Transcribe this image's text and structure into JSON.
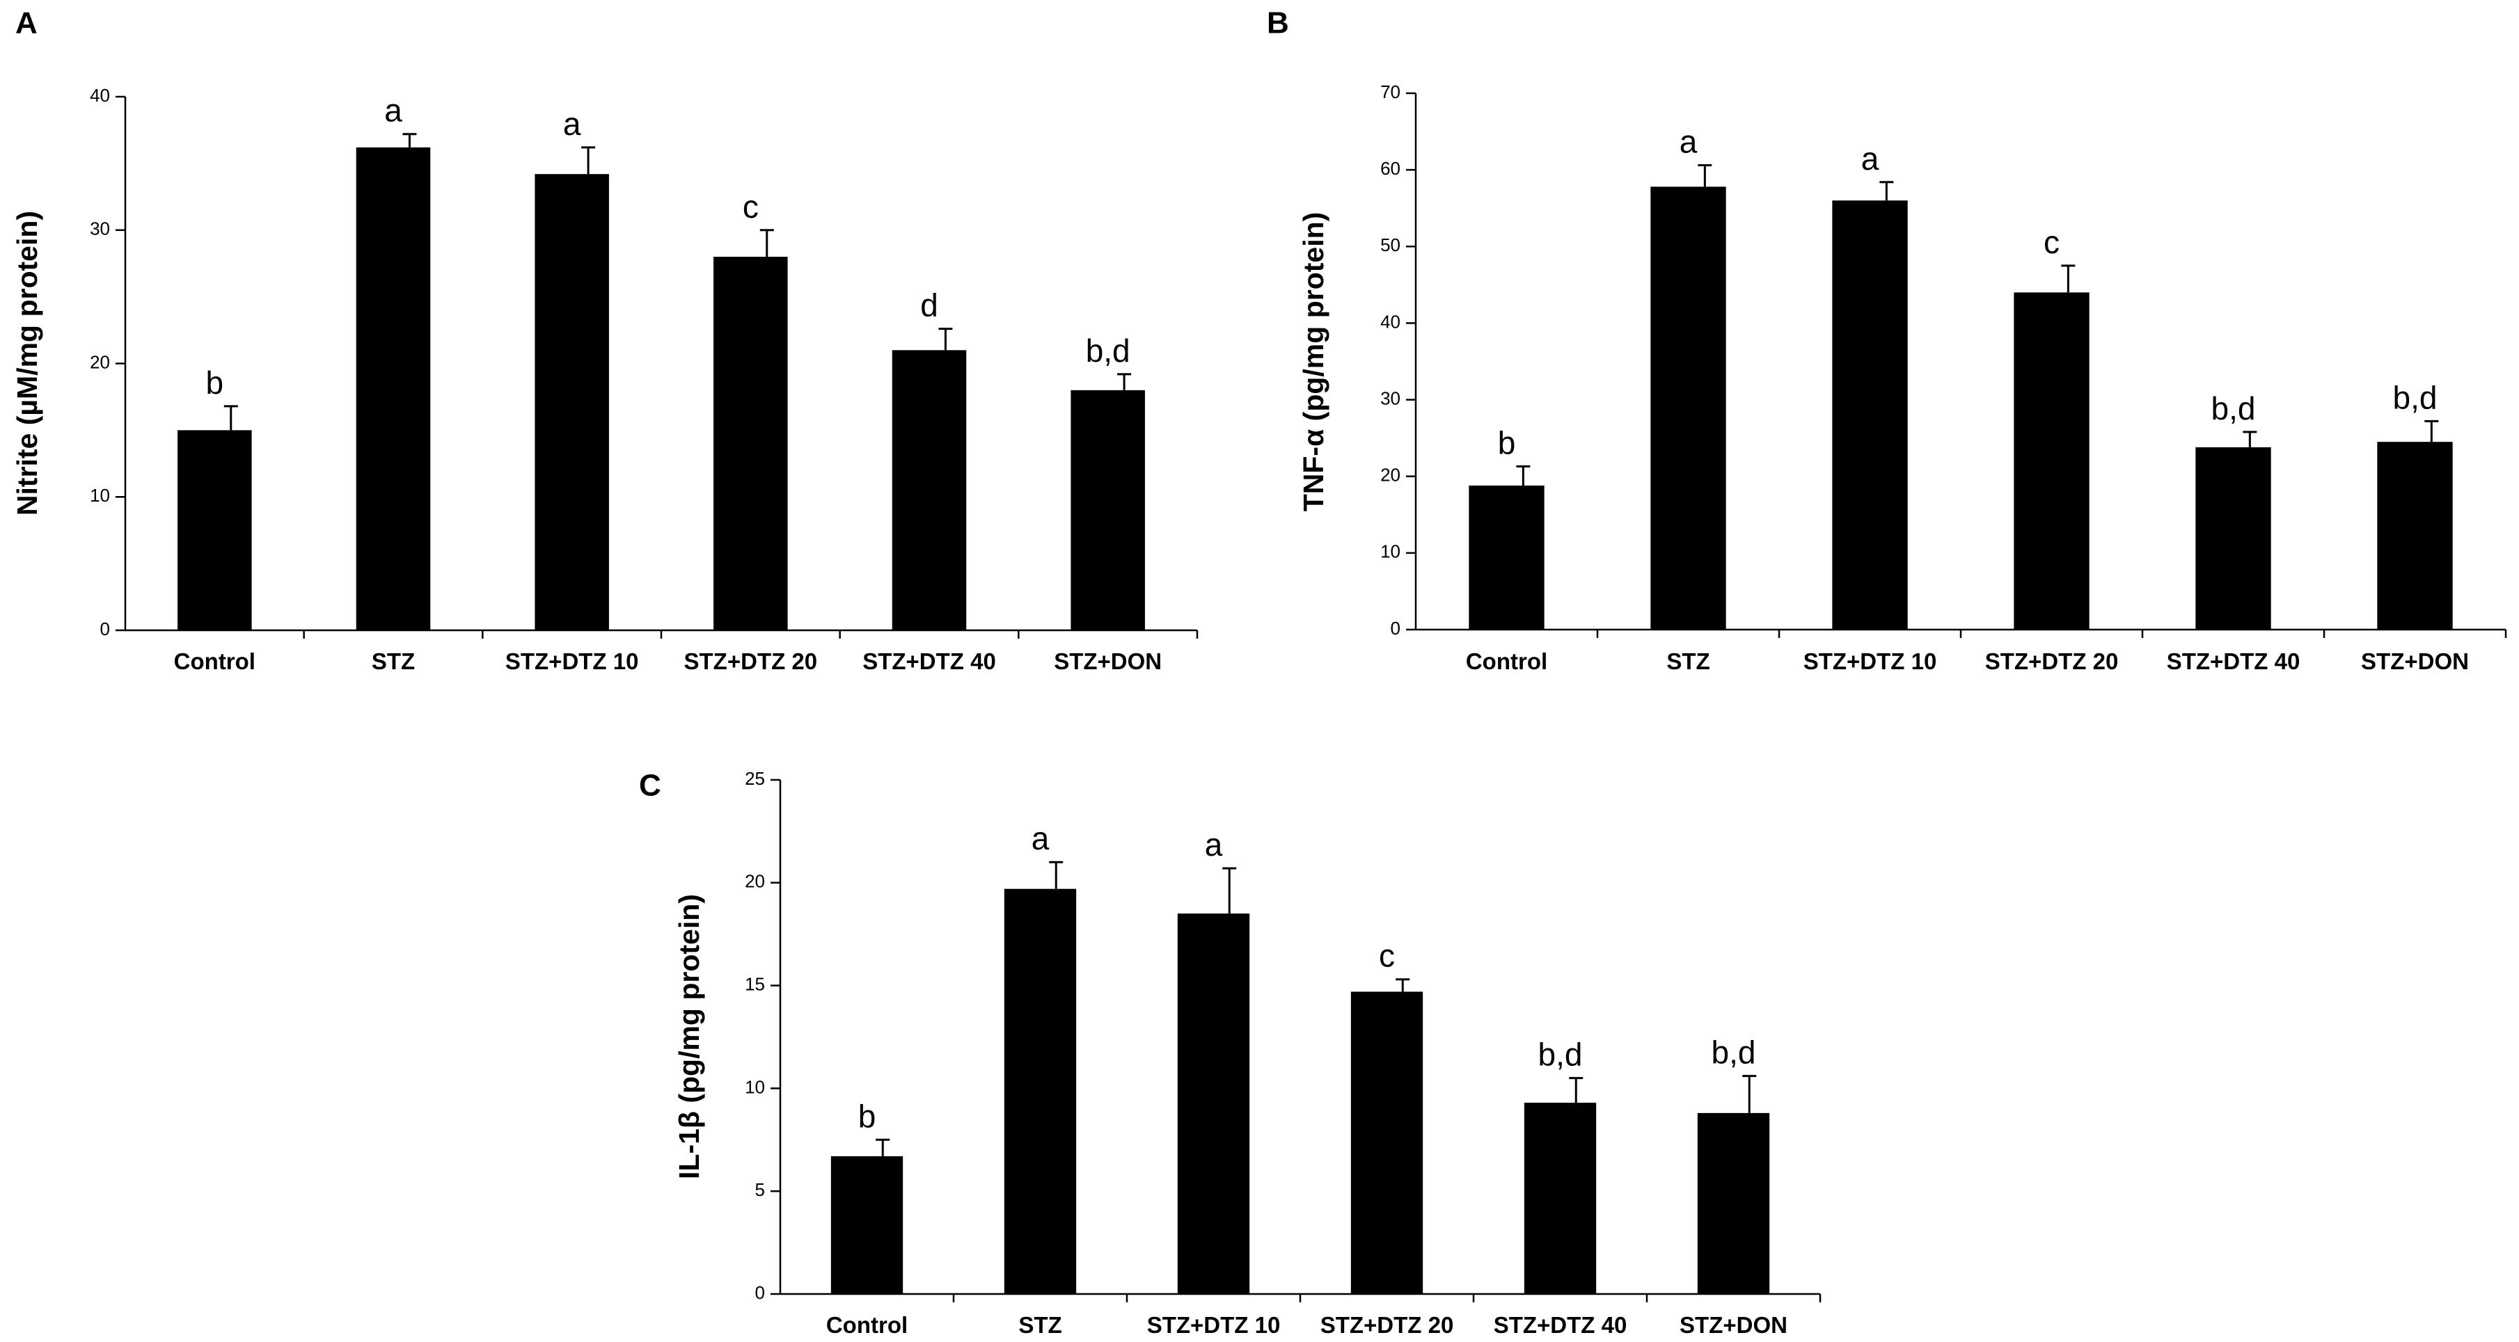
{
  "figure": {
    "bar_color": "#000000",
    "axis_color": "#000000"
  },
  "chart_data": [
    {
      "type": "bar",
      "panel_label": "A",
      "title": "",
      "xlabel": "",
      "ylabel": "Nitrite (µM/mg protein)",
      "ylim": [
        0,
        40
      ],
      "yticks": [
        0,
        10,
        20,
        30,
        40
      ],
      "grid": false,
      "categories": [
        "Control",
        "STZ",
        "STZ+DTZ 10",
        "STZ+DTZ 20",
        "STZ+DTZ 40",
        "STZ+DON"
      ],
      "values": [
        15,
        36.2,
        34.2,
        28,
        21,
        18
      ],
      "errors": [
        1.8,
        1.0,
        2.0,
        2.0,
        1.6,
        1.2
      ],
      "annotations": [
        "b",
        "a",
        "a",
        "c",
        "d",
        "b,d"
      ]
    },
    {
      "type": "bar",
      "panel_label": "B",
      "title": "",
      "xlabel": "",
      "ylabel": "TNF-α (pg/mg protein)",
      "ylim": [
        0,
        70
      ],
      "yticks": [
        0,
        10,
        20,
        30,
        40,
        50,
        60,
        70
      ],
      "grid": false,
      "categories": [
        "Control",
        "STZ",
        "STZ+DTZ 10",
        "STZ+DTZ 20",
        "STZ+DTZ 40",
        "STZ+DON"
      ],
      "values": [
        18.8,
        57.8,
        56,
        44,
        23.8,
        24.5
      ],
      "errors": [
        2.5,
        2.8,
        2.4,
        3.5,
        2.0,
        2.7
      ],
      "annotations": [
        "b",
        "a",
        "a",
        "c",
        "b,d",
        "b,d"
      ]
    },
    {
      "type": "bar",
      "panel_label": "C",
      "title": "",
      "xlabel": "",
      "ylabel": "IL-1β (pg/mg protein)",
      "ylim": [
        0,
        25
      ],
      "yticks": [
        0,
        5,
        10,
        15,
        20,
        25
      ],
      "grid": false,
      "categories": [
        "Control",
        "STZ",
        "STZ+DTZ 10",
        "STZ+DTZ 20",
        "STZ+DTZ 40",
        "STZ+DON"
      ],
      "values": [
        6.7,
        19.7,
        18.5,
        14.7,
        9.3,
        8.8
      ],
      "errors": [
        0.8,
        1.3,
        2.2,
        0.6,
        1.2,
        1.8
      ],
      "annotations": [
        "b",
        "a",
        "a",
        "c",
        "b,d",
        "b,d"
      ]
    }
  ]
}
